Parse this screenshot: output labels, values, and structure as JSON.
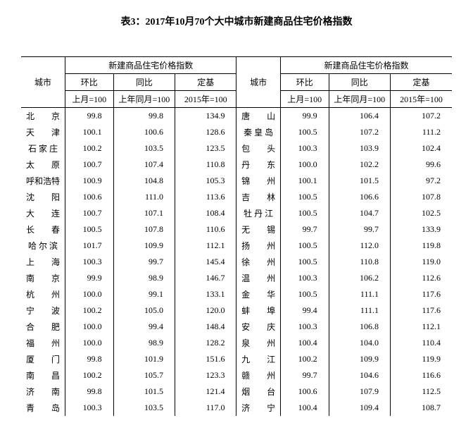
{
  "title": "表3：2017年10月70个大中城市新建商品住宅价格指数",
  "header_group": "新建商品住宅价格指数",
  "col_city": "城市",
  "col_mom": "环比",
  "col_yoy": "同比",
  "col_base": "定基",
  "sub_mom": "上月=100",
  "sub_yoy": "上年同月=100",
  "sub_base": "2015年=100",
  "rows": [
    {
      "c1": "北　　京",
      "v1": "99.8",
      "v2": "99.8",
      "v3": "134.9",
      "c2": "唐　　山",
      "v4": "99.9",
      "v5": "106.4",
      "v6": "107.2"
    },
    {
      "c1": "天　　津",
      "v1": "100.1",
      "v2": "100.6",
      "v3": "128.6",
      "c2": "秦 皇 岛",
      "v4": "100.5",
      "v5": "107.2",
      "v6": "111.2"
    },
    {
      "c1": "石 家 庄",
      "v1": "100.2",
      "v2": "103.5",
      "v3": "123.5",
      "c2": "包　　头",
      "v4": "100.3",
      "v5": "103.9",
      "v6": "102.4"
    },
    {
      "c1": "太　　原",
      "v1": "100.7",
      "v2": "107.4",
      "v3": "110.8",
      "c2": "丹　　东",
      "v4": "100.0",
      "v5": "102.2",
      "v6": "99.6"
    },
    {
      "c1": "呼和浩特",
      "v1": "100.9",
      "v2": "104.8",
      "v3": "105.3",
      "c2": "锦　　州",
      "v4": "100.1",
      "v5": "101.5",
      "v6": "97.2"
    },
    {
      "c1": "沈　　阳",
      "v1": "100.6",
      "v2": "111.0",
      "v3": "113.6",
      "c2": "吉　　林",
      "v4": "100.5",
      "v5": "106.6",
      "v6": "107.8"
    },
    {
      "c1": "大　　连",
      "v1": "100.7",
      "v2": "107.1",
      "v3": "108.4",
      "c2": "牡 丹 江",
      "v4": "100.5",
      "v5": "104.7",
      "v6": "102.5"
    },
    {
      "c1": "长　　春",
      "v1": "100.5",
      "v2": "107.8",
      "v3": "110.6",
      "c2": "无　　锡",
      "v4": "99.7",
      "v5": "99.7",
      "v6": "133.9"
    },
    {
      "c1": "哈 尔 滨",
      "v1": "101.7",
      "v2": "109.9",
      "v3": "112.1",
      "c2": "扬　　州",
      "v4": "100.5",
      "v5": "112.0",
      "v6": "119.8"
    },
    {
      "c1": "上　　海",
      "v1": "100.3",
      "v2": "99.7",
      "v3": "145.4",
      "c2": "徐　　州",
      "v4": "100.5",
      "v5": "110.8",
      "v6": "119.0"
    },
    {
      "c1": "南　　京",
      "v1": "99.9",
      "v2": "98.9",
      "v3": "146.7",
      "c2": "温　　州",
      "v4": "100.3",
      "v5": "106.2",
      "v6": "112.6"
    },
    {
      "c1": "杭　　州",
      "v1": "100.0",
      "v2": "99.1",
      "v3": "133.1",
      "c2": "金　　华",
      "v4": "100.5",
      "v5": "111.1",
      "v6": "117.6"
    },
    {
      "c1": "宁　　波",
      "v1": "100.2",
      "v2": "105.0",
      "v3": "120.0",
      "c2": "蚌　　埠",
      "v4": "99.4",
      "v5": "111.1",
      "v6": "117.6"
    },
    {
      "c1": "合　　肥",
      "v1": "100.0",
      "v2": "99.4",
      "v3": "148.4",
      "c2": "安　　庆",
      "v4": "100.3",
      "v5": "106.8",
      "v6": "112.1"
    },
    {
      "c1": "福　　州",
      "v1": "100.0",
      "v2": "98.9",
      "v3": "128.2",
      "c2": "泉　　州",
      "v4": "100.4",
      "v5": "104.0",
      "v6": "110.4"
    },
    {
      "c1": "厦　　门",
      "v1": "99.8",
      "v2": "101.9",
      "v3": "151.6",
      "c2": "九　　江",
      "v4": "100.2",
      "v5": "109.9",
      "v6": "119.9"
    },
    {
      "c1": "南　　昌",
      "v1": "100.2",
      "v2": "105.7",
      "v3": "123.3",
      "c2": "赣　　州",
      "v4": "99.7",
      "v5": "104.6",
      "v6": "116.6"
    },
    {
      "c1": "济　　南",
      "v1": "99.8",
      "v2": "101.5",
      "v3": "121.4",
      "c2": "烟　　台",
      "v4": "100.6",
      "v5": "107.9",
      "v6": "112.5"
    },
    {
      "c1": "青　　岛",
      "v1": "100.3",
      "v2": "103.5",
      "v3": "117.0",
      "c2": "济　　宁",
      "v4": "100.4",
      "v5": "109.4",
      "v6": "108.7"
    }
  ]
}
